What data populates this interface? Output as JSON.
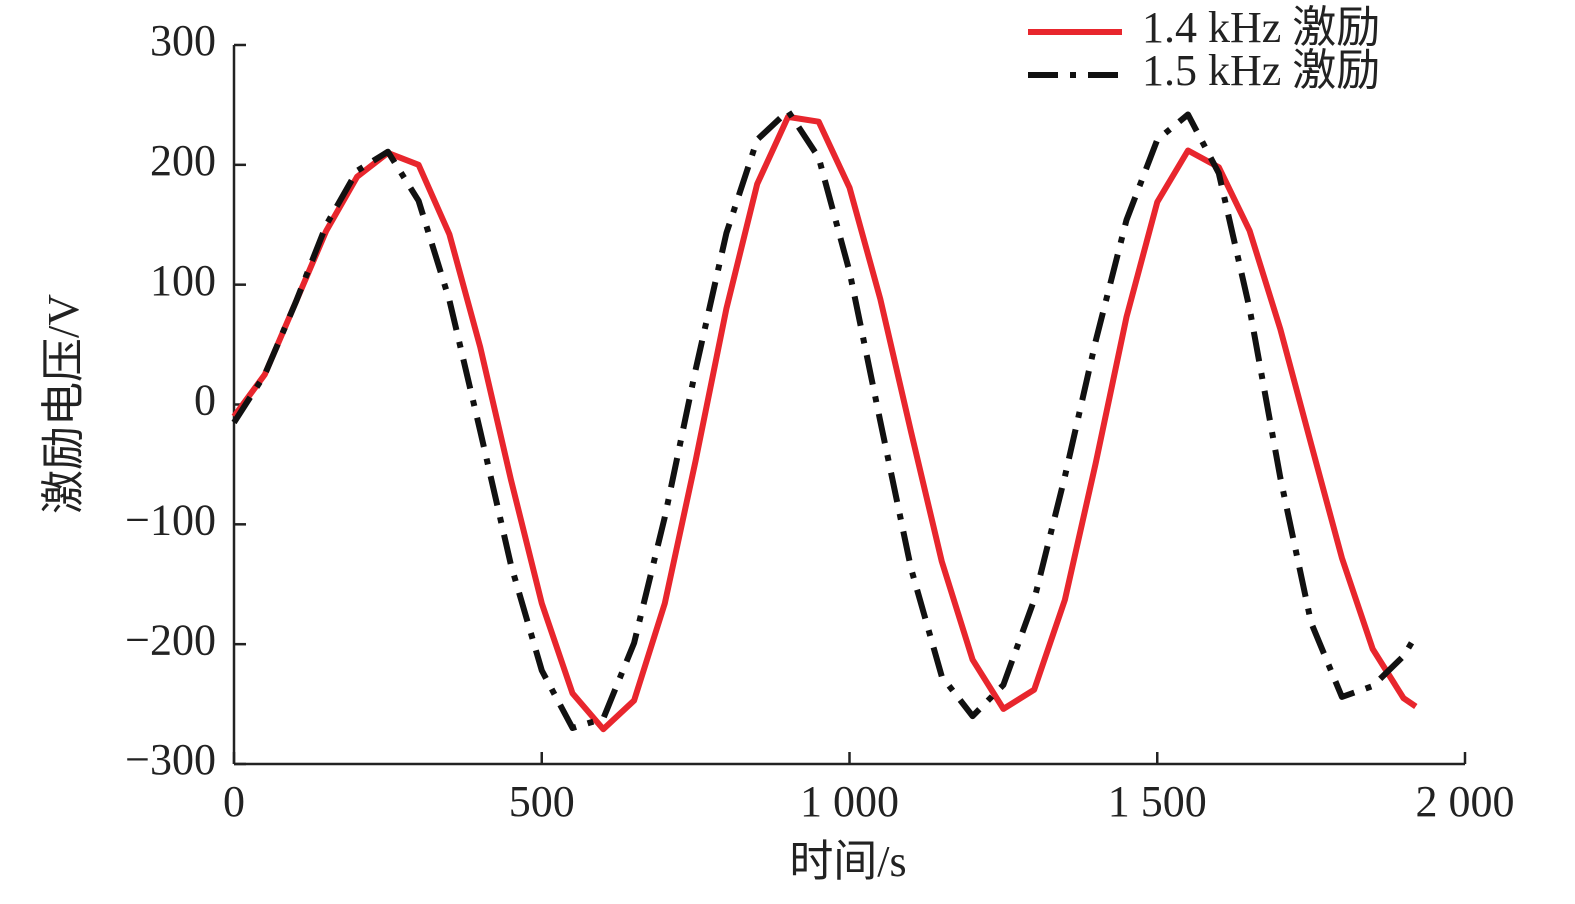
{
  "chart_data": {
    "type": "line",
    "xlabel": "时间/s",
    "ylabel": "激励电压/V",
    "x": [
      0,
      50,
      100,
      150,
      200,
      250,
      300,
      350,
      400,
      450,
      500,
      550,
      600,
      650,
      700,
      750,
      800,
      850,
      900,
      950,
      1000,
      1050,
      1100,
      1150,
      1200,
      1250,
      1300,
      1350,
      1400,
      1450,
      1500,
      1550,
      1600,
      1650,
      1700,
      1750,
      1800,
      1850,
      1900,
      1920
    ],
    "series": [
      {
        "name": "1.4 kHz 激励",
        "color": "#e8262d",
        "dash": "solid",
        "values": [
          -10,
          25,
          85,
          145,
          190,
          210,
          200,
          142,
          48,
          -63,
          -166,
          -241,
          -271,
          -247,
          -166,
          -47,
          80,
          184,
          240,
          236,
          181,
          88,
          -23,
          -131,
          -213,
          -254,
          -238,
          -163,
          -49,
          73,
          169,
          212,
          198,
          145,
          63,
          -33,
          -128,
          -204,
          -245,
          -252
        ]
      },
      {
        "name": "1.5 kHz 激励",
        "color": "#111111",
        "dash": "dashdot",
        "values": [
          -15,
          25,
          85,
          150,
          195,
          211,
          170,
          87,
          -22,
          -134,
          -222,
          -270,
          -262,
          -199,
          -94,
          29,
          143,
          221,
          245,
          206,
          111,
          -14,
          -137,
          -227,
          -260,
          -234,
          -163,
          -60,
          53,
          154,
          221,
          242,
          193,
          80,
          -61,
          -182,
          -244,
          -235,
          -210,
          -193
        ]
      }
    ],
    "xlim": [
      0,
      2000
    ],
    "xticks": [
      0,
      500,
      {
        "value": 1000,
        "label": "1 000"
      },
      {
        "value": 1500,
        "label": "1 500"
      },
      {
        "value": 2000,
        "label": "2 000"
      }
    ],
    "ylim": [
      -300,
      300
    ],
    "yticks": [
      {
        "value": -300,
        "label": "−300"
      },
      {
        "value": -200,
        "label": "−200"
      },
      {
        "value": -100,
        "label": "−100"
      },
      0,
      100,
      200,
      300
    ],
    "legend": "top-right",
    "grid": false
  }
}
